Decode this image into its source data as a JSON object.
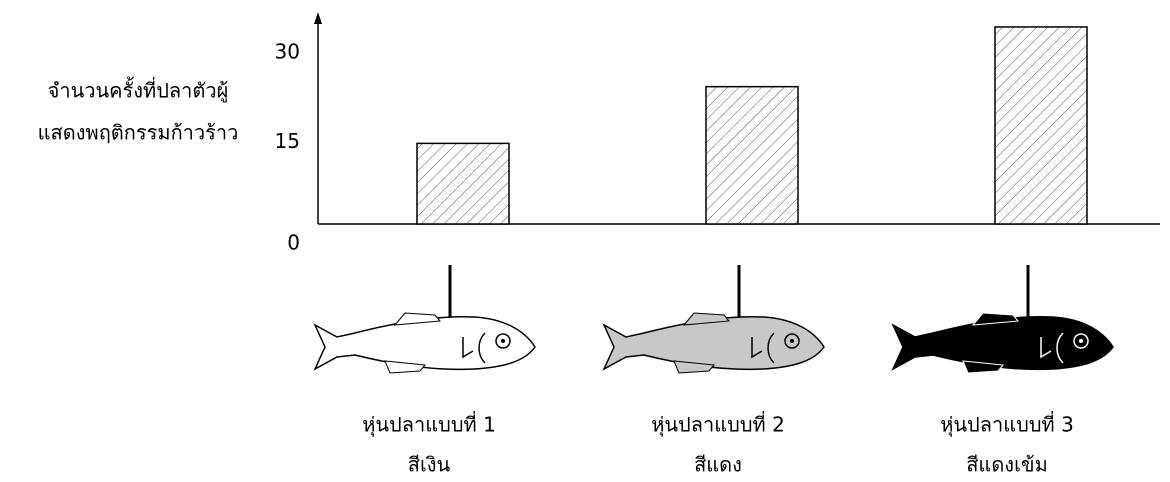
{
  "chart_data": {
    "type": "bar",
    "ylabel": [
      "จำนวนครั้งที่ปลาตัวผู้",
      "แสดงพฤติกรรมก้าวร้าว"
    ],
    "categories": [
      "หุ่นปลาแบบที่ 1",
      "หุ่นปลาแบบที่ 2",
      "หุ่นปลาแบบที่ 3"
    ],
    "category_notes": [
      "สีเงิน",
      "สีแดง",
      "สีแดงเข้ม"
    ],
    "fish_colors": [
      "#ffffff",
      "#c8c8c8",
      "#000000"
    ],
    "values": [
      13.5,
      23,
      33
    ],
    "ylim": [
      0,
      34.5
    ],
    "yticks": [
      0,
      15,
      30
    ],
    "hatched": true
  }
}
